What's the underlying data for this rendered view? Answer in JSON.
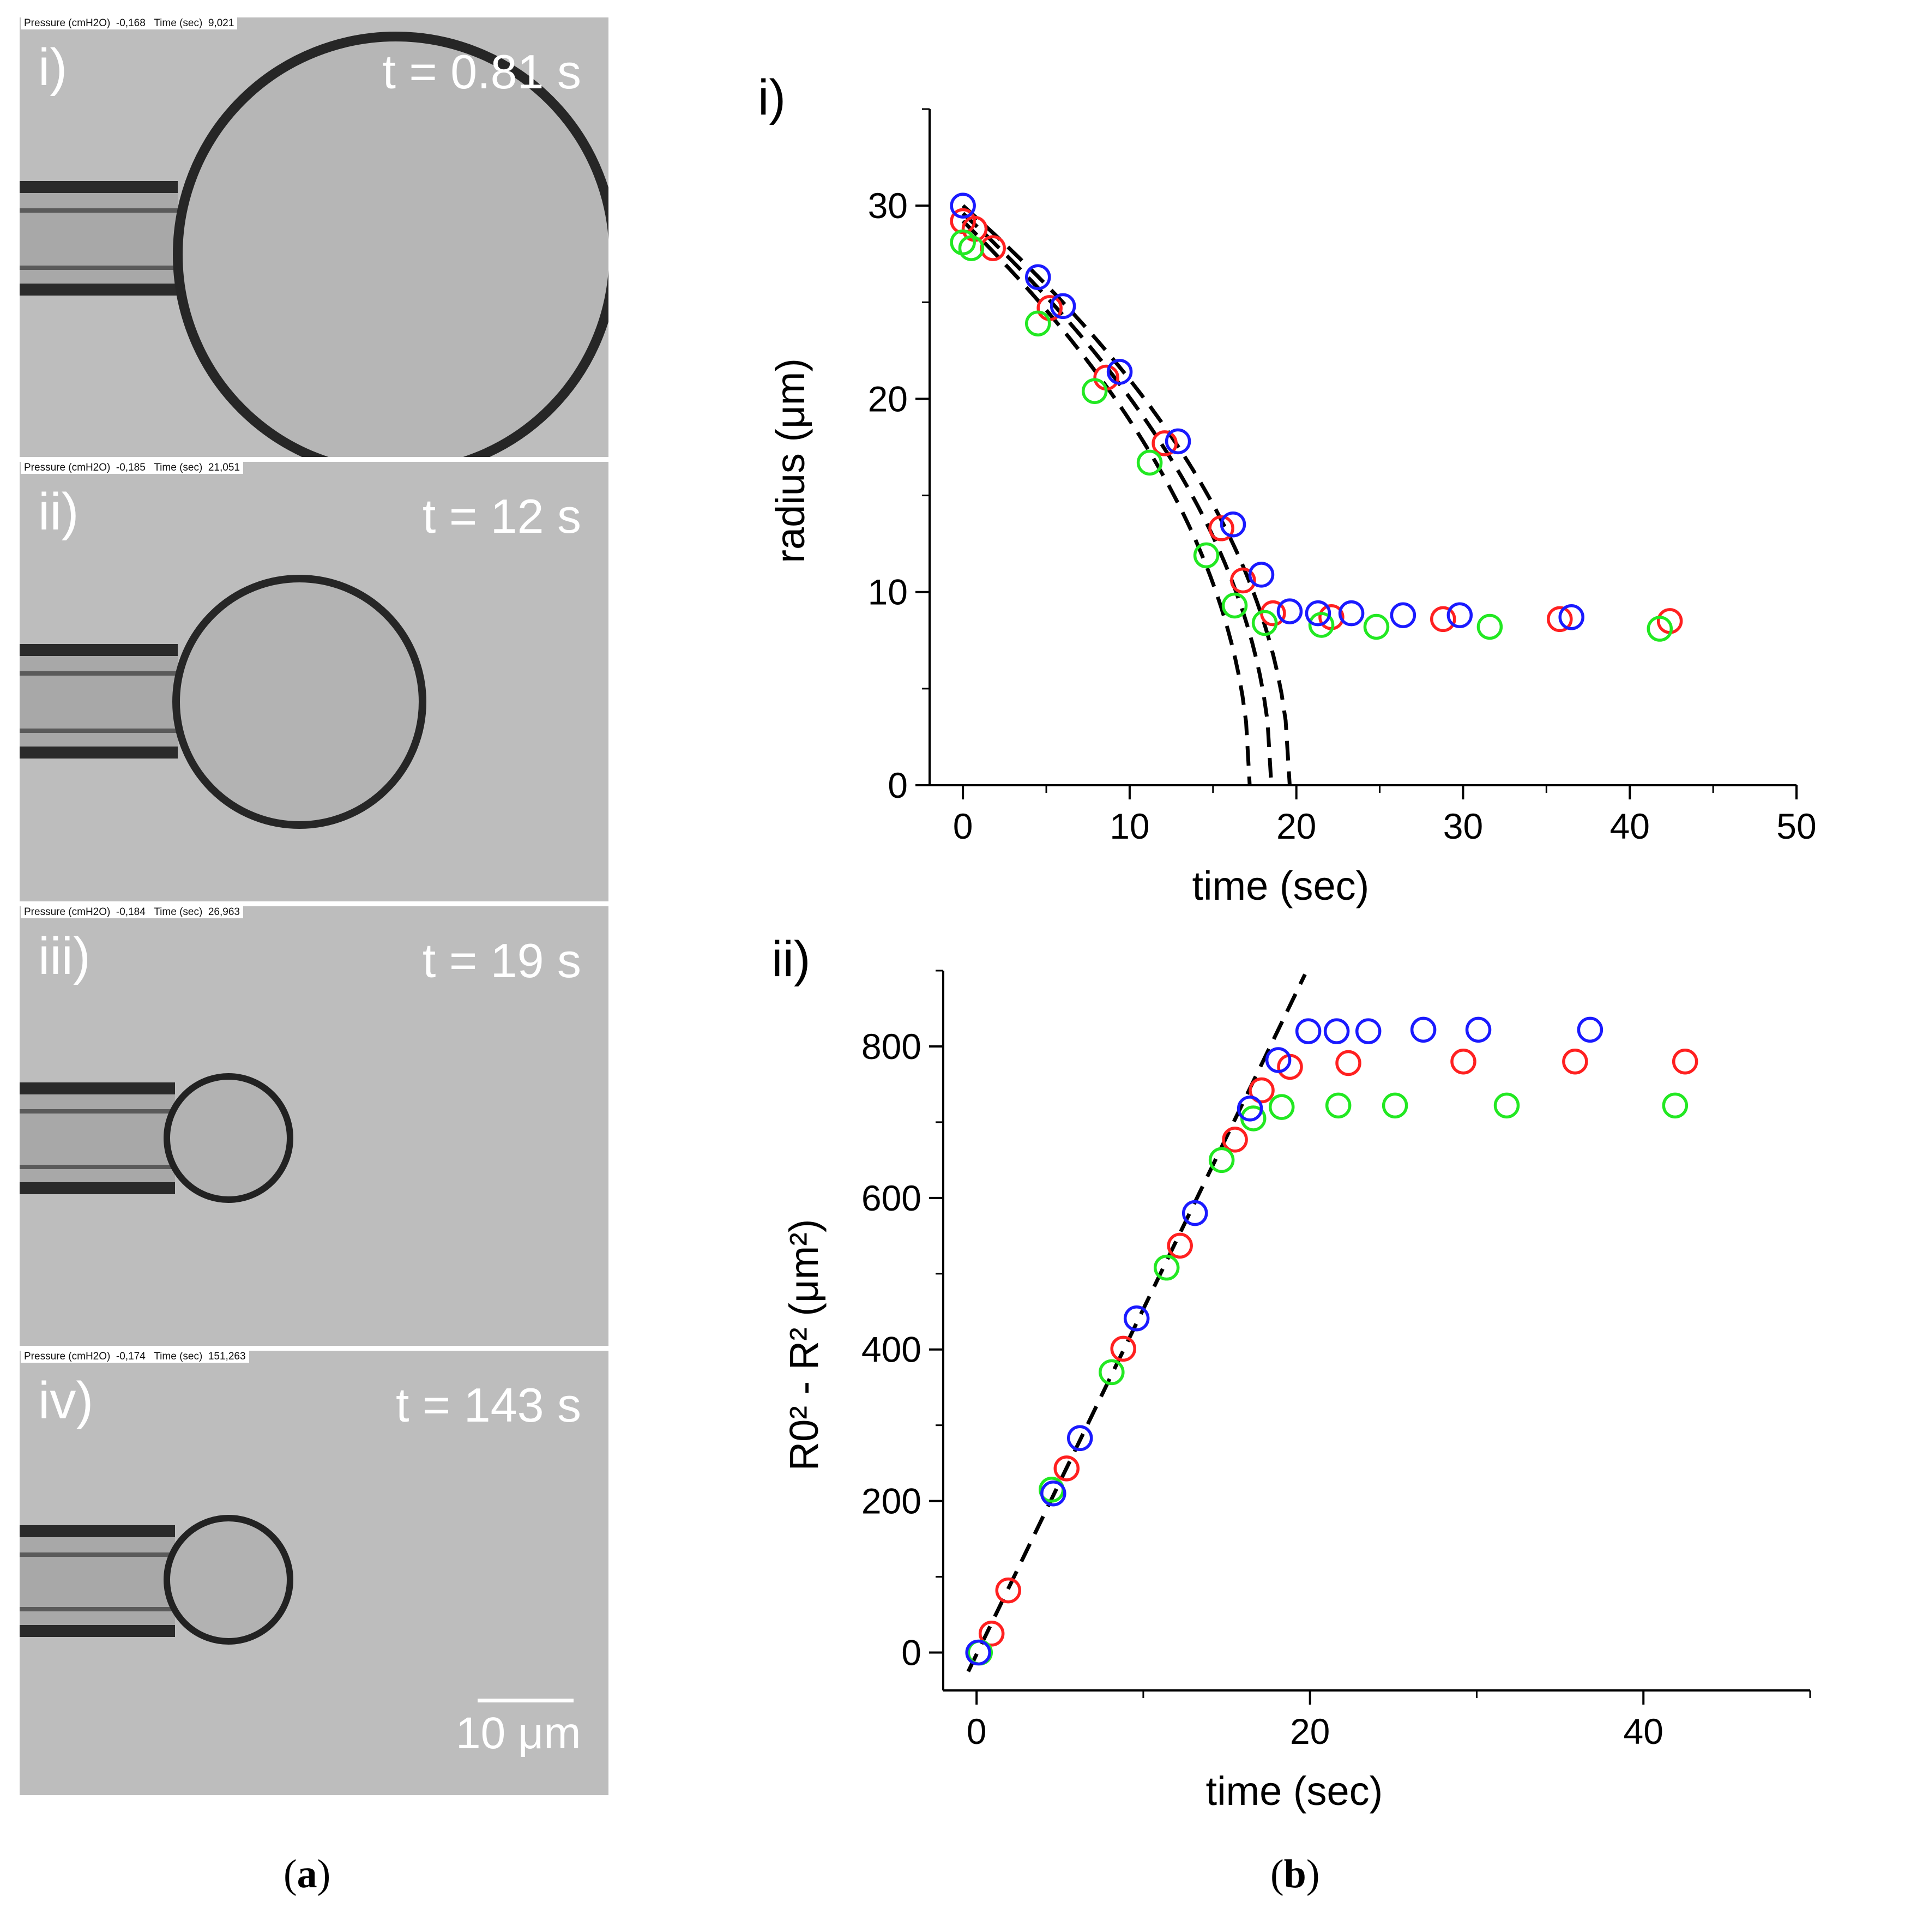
{
  "panel_a": {
    "caption_letter": "a",
    "scale_bar": "10 μm",
    "frames": [
      {
        "roman": "i)",
        "time_label": "t = 0.81 s",
        "info": "Pressure (cmH2O)  -0,168   Time (sec)  9,021",
        "bubble_radius_um": 30
      },
      {
        "roman": "ii)",
        "time_label": "t = 12 s",
        "info": "Pressure (cmH2O)  -0,185   Time (sec)  21,051",
        "bubble_radius_um": 18
      },
      {
        "roman": "iii)",
        "time_label": "t = 19 s",
        "info": "Pressure (cmH2O)  -0,184   Time (sec)  26,963",
        "bubble_radius_um": 9.3
      },
      {
        "roman": "iv)",
        "time_label": "t = 143 s",
        "info": "Pressure (cmH2O)  -0,174   Time (sec)  151,263",
        "bubble_radius_um": 9.3
      }
    ]
  },
  "panel_b": {
    "caption_letter": "b"
  },
  "colors": {
    "red": "#ff2020",
    "green": "#22e822",
    "blue": "#1a1aff",
    "fit": "#000000"
  },
  "chart_data": [
    {
      "type": "scatter",
      "panel_label": "i)",
      "xlabel": "time (sec)",
      "ylabel": "radius (μm)",
      "xlim": [
        -2,
        50
      ],
      "ylim": [
        0,
        35
      ],
      "xticks": [
        0,
        10,
        20,
        30,
        40,
        50
      ],
      "yticks": [
        0,
        10,
        20,
        30
      ],
      "series": [
        {
          "name": "red",
          "color": "#ff2020",
          "x": [
            0,
            0.7,
            1.8,
            5.2,
            8.6,
            12.1,
            15.5,
            16.8,
            18.6,
            22.1,
            28.8,
            35.8,
            42.4
          ],
          "y": [
            29.2,
            28.8,
            27.8,
            24.7,
            21.1,
            17.7,
            13.3,
            10.6,
            8.9,
            8.7,
            8.6,
            8.6,
            8.5
          ]
        },
        {
          "name": "green",
          "color": "#22e822",
          "x": [
            0,
            0.5,
            4.5,
            7.9,
            11.2,
            14.6,
            16.3,
            18.1,
            21.5,
            24.8,
            31.6,
            41.8
          ],
          "y": [
            28.1,
            27.8,
            23.9,
            20.4,
            16.7,
            11.9,
            9.3,
            8.4,
            8.3,
            8.2,
            8.2,
            8.1
          ]
        },
        {
          "name": "blue",
          "color": "#1a1aff",
          "x": [
            0,
            4.5,
            6.0,
            9.4,
            12.9,
            16.2,
            17.9,
            19.6,
            21.3,
            23.3,
            26.4,
            29.8,
            36.5
          ],
          "y": [
            30.0,
            26.3,
            24.8,
            21.4,
            17.8,
            13.5,
            10.9,
            9.0,
            8.9,
            8.9,
            8.8,
            8.8,
            8.7
          ]
        }
      ],
      "fits": [
        {
          "name": "fit-1",
          "style": "dashed",
          "R0": 29.2,
          "t_end": 17.2
        },
        {
          "name": "fit-2",
          "style": "dashed",
          "R0": 29.6,
          "t_end": 18.5
        },
        {
          "name": "fit-3",
          "style": "dashed",
          "R0": 30.0,
          "t_end": 19.6
        }
      ]
    },
    {
      "type": "scatter",
      "panel_label": "ii)",
      "xlabel": "time (sec)",
      "ylabel": "R0² - R² (μm²)",
      "xlim": [
        -2,
        50
      ],
      "ylim": [
        -50,
        900
      ],
      "xticks": [
        0,
        20,
        40
      ],
      "yticks": [
        0,
        200,
        400,
        600,
        800
      ],
      "series": [
        {
          "name": "red",
          "color": "#ff2020",
          "x": [
            0.9,
            1.9,
            5.4,
            8.8,
            12.2,
            15.5,
            17.1,
            18.8,
            22.3,
            29.2,
            35.9,
            42.5
          ],
          "y": [
            25,
            82,
            243,
            401,
            537,
            677,
            742,
            773,
            778,
            780,
            780,
            780
          ]
        },
        {
          "name": "green",
          "color": "#22e822",
          "x": [
            0.2,
            4.5,
            8.1,
            11.4,
            14.7,
            16.6,
            18.3,
            21.7,
            25.1,
            31.8,
            41.9
          ],
          "y": [
            0,
            215,
            370,
            508,
            650,
            705,
            720,
            722,
            722,
            722,
            722
          ]
        },
        {
          "name": "blue",
          "color": "#1a1aff",
          "x": [
            0.1,
            4.6,
            6.2,
            9.6,
            13.1,
            16.4,
            18.1,
            19.9,
            21.6,
            23.5,
            26.8,
            30.1,
            36.8
          ],
          "y": [
            0,
            210,
            283,
            441,
            580,
            718,
            782,
            820,
            820,
            820,
            822,
            822,
            822
          ]
        }
      ],
      "fits": [
        {
          "name": "linear-fit",
          "style": "dashed",
          "x": [
            -0.5,
            19.7
          ],
          "y": [
            -25,
            895
          ]
        }
      ]
    }
  ]
}
